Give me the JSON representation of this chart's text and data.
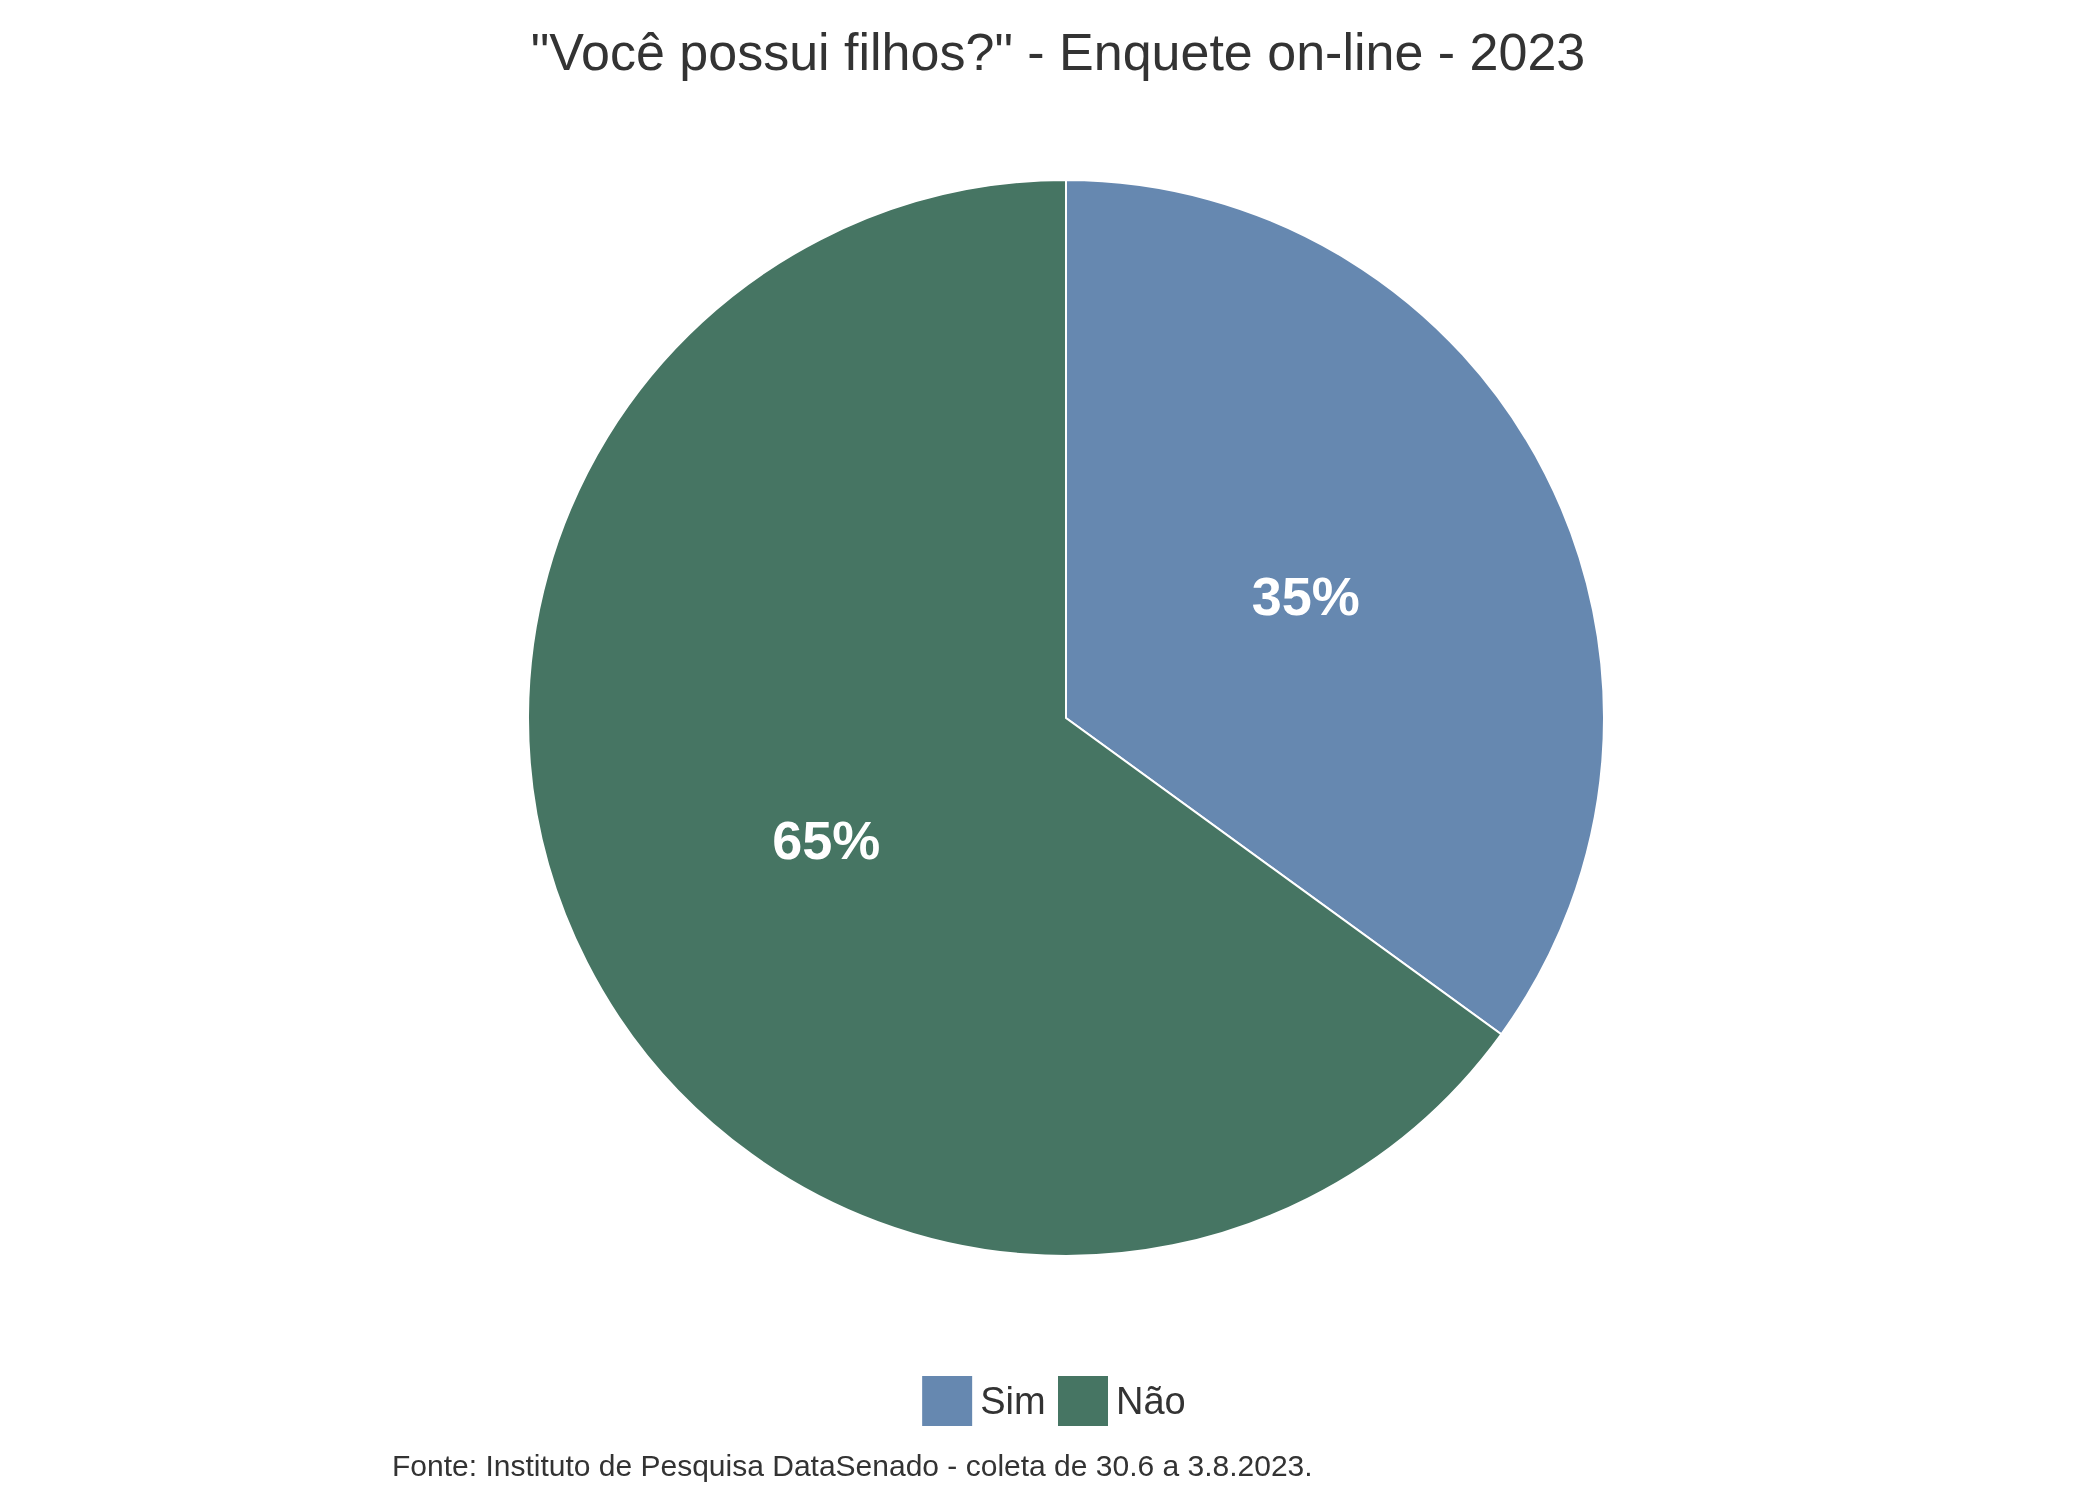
{
  "chart_data": {
    "type": "pie",
    "title": "\"Você possui filhos?\" - Enquete on-line - 2023",
    "categories": [
      "Sim",
      "Não"
    ],
    "values": [
      35,
      65
    ],
    "value_labels": [
      "35%",
      "65%"
    ],
    "colors": [
      "#6688b0",
      "#467563"
    ],
    "legend": "bottom",
    "annotations": [
      "Fonte: Instituto de Pesquisa DataSenado - coleta de 30.6 a 3.8.2023."
    ]
  }
}
